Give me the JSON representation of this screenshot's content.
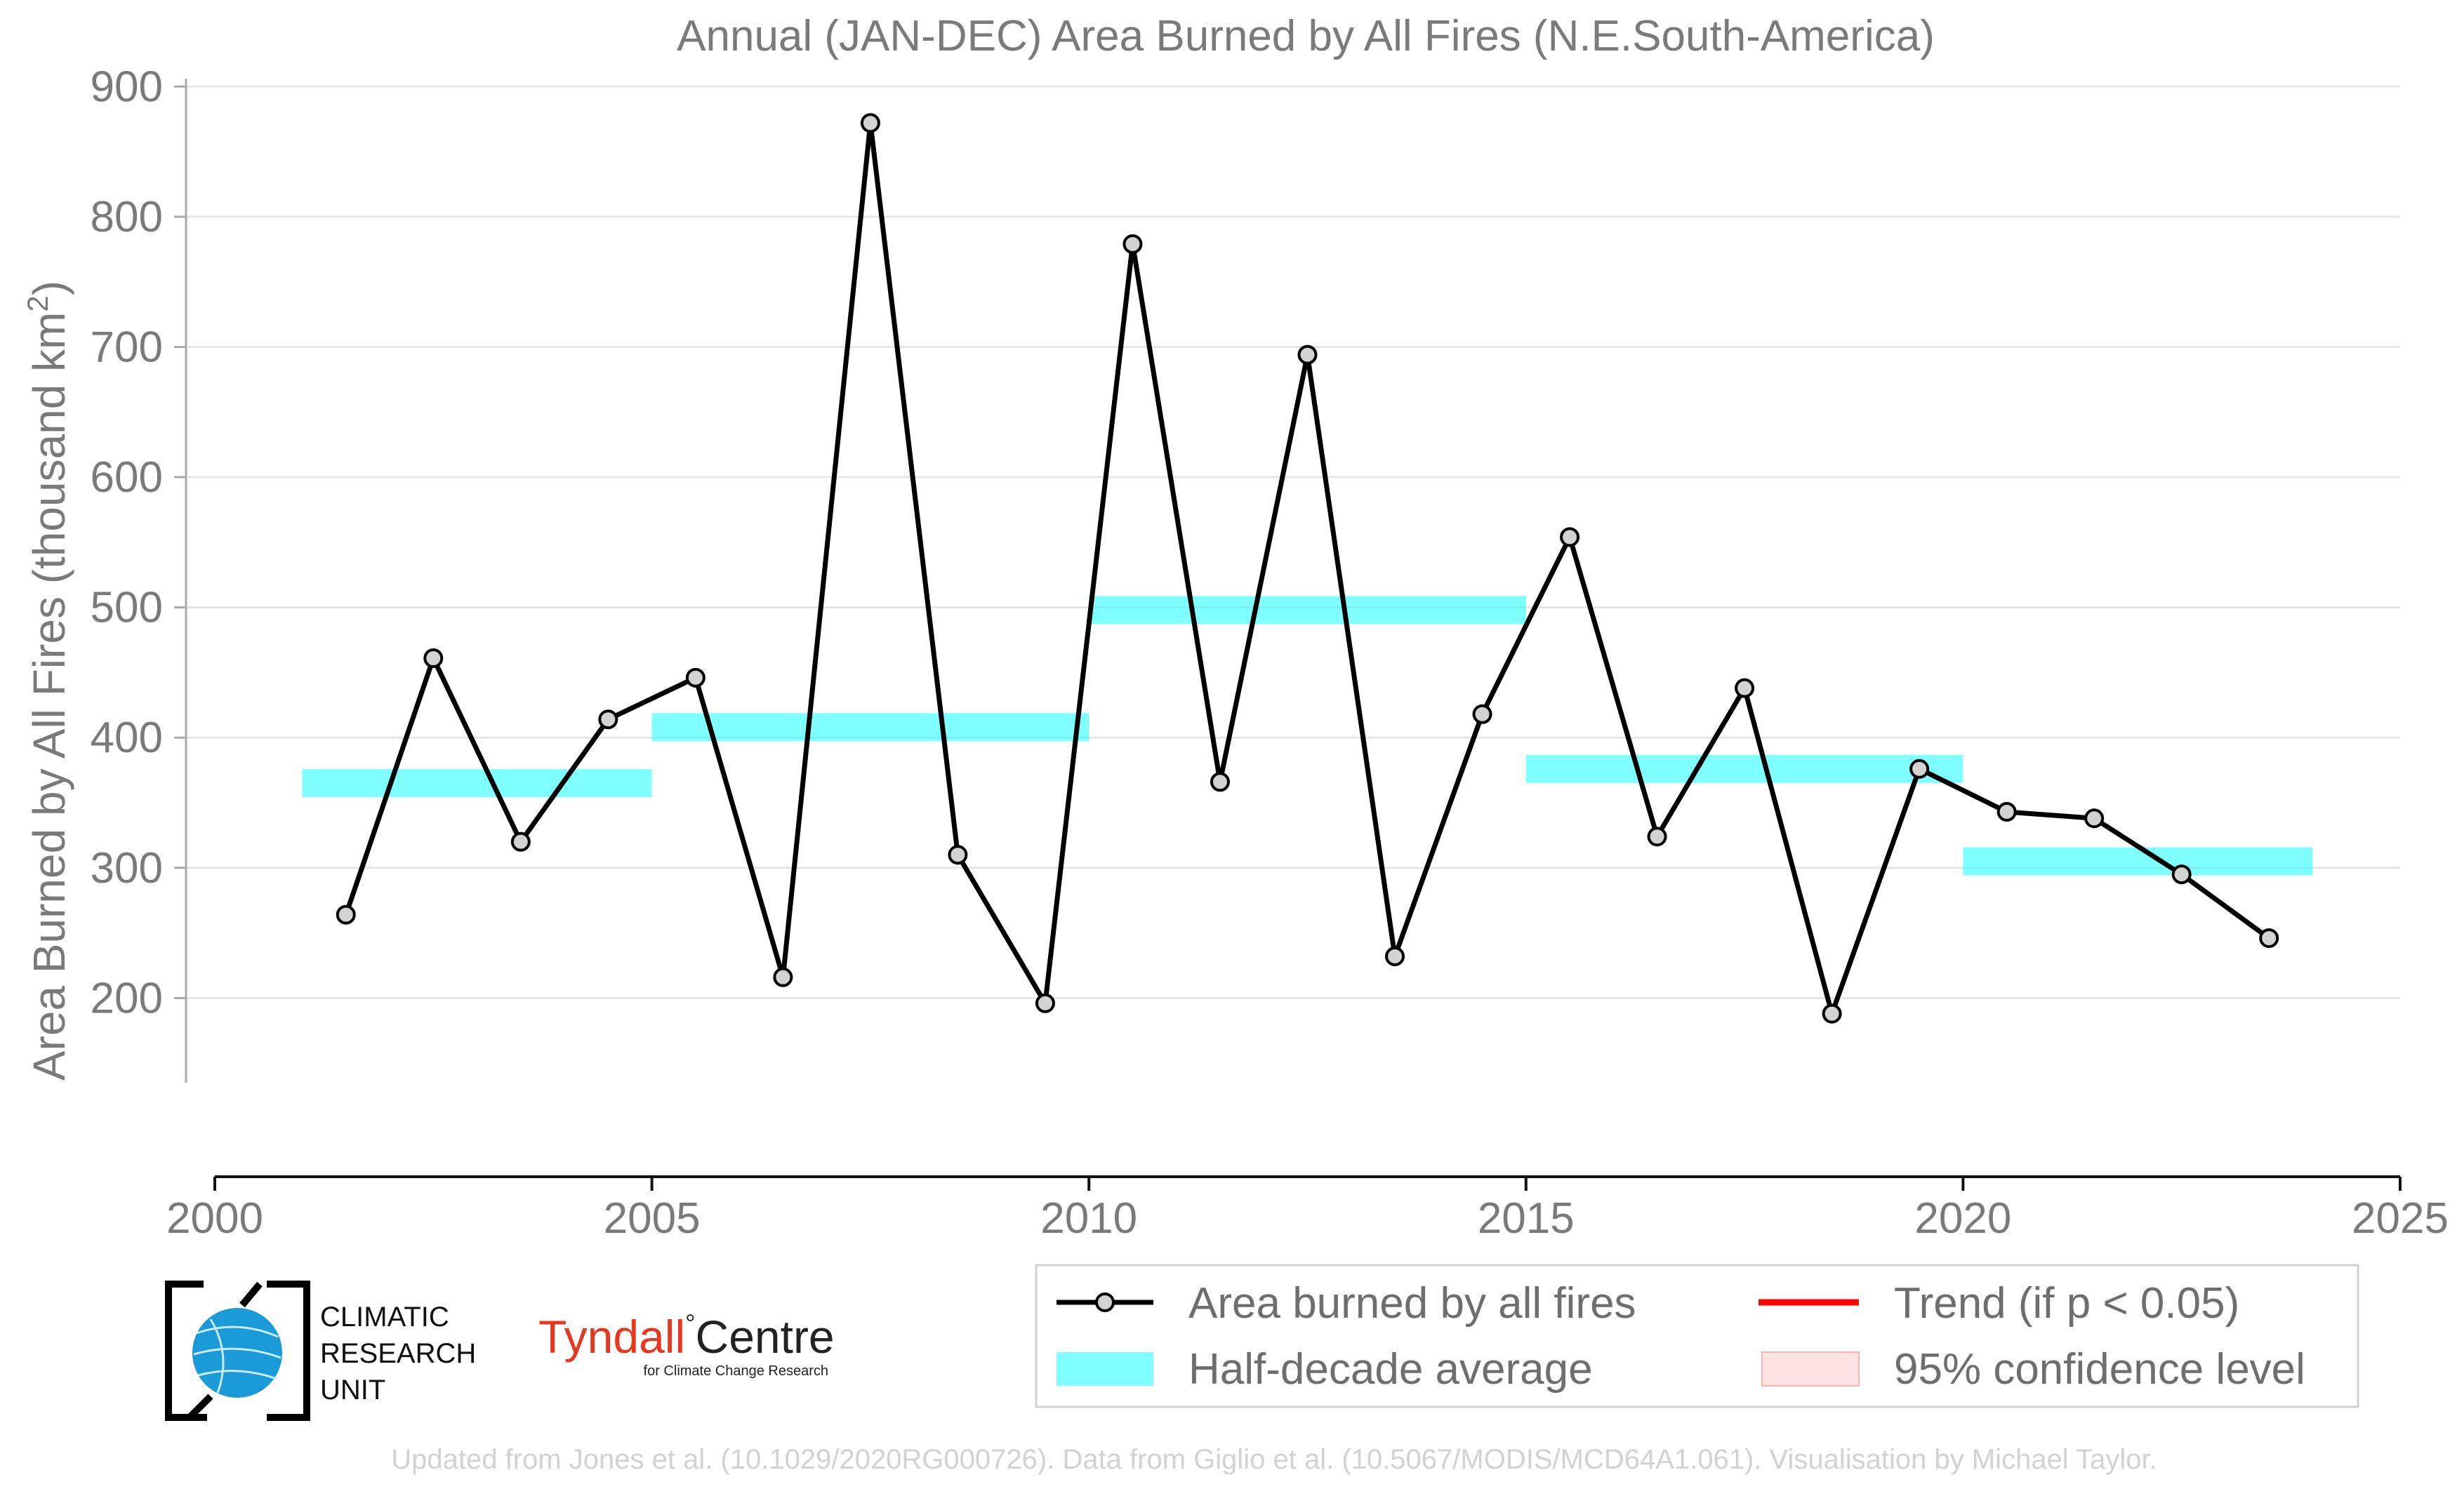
{
  "chart_data": {
    "type": "line",
    "title": "Annual (JAN-DEC) Area Burned by All Fires (N.E.South-America)",
    "ylabel_main": "Area Burned by All Fires (thousand km",
    "ylabel_sup": "2",
    "ylabel_tail": ")",
    "xlim": [
      2000,
      2025
    ],
    "ylim": [
      135,
      905
    ],
    "x_ticks": [
      2000,
      2005,
      2010,
      2015,
      2020,
      2025
    ],
    "y_ticks": [
      200,
      300,
      400,
      500,
      600,
      700,
      800,
      900
    ],
    "grid": "horizontal",
    "series": [
      {
        "name": "Area burned by all fires",
        "color": "#000000",
        "marker_fill": "#d3d3d3",
        "x": [
          2001.5,
          2002.5,
          2003.5,
          2004.5,
          2005.5,
          2006.5,
          2007.5,
          2008.5,
          2009.5,
          2010.5,
          2011.5,
          2012.5,
          2013.5,
          2014.5,
          2015.5,
          2016.5,
          2017.5,
          2018.5,
          2019.5,
          2020.5,
          2021.5,
          2022.5,
          2023.5
        ],
        "y": [
          264,
          461,
          320,
          414,
          446,
          216,
          872,
          310,
          196,
          779,
          366,
          694,
          232,
          418,
          554,
          324,
          438,
          188,
          376,
          343,
          338,
          295,
          246
        ]
      }
    ],
    "half_decade_averages": {
      "name": "Half-decade average",
      "color": "#00ffff",
      "segments": [
        {
          "x0": 2001,
          "x1": 2005,
          "y": 365
        },
        {
          "x0": 2005,
          "x1": 2010,
          "y": 408
        },
        {
          "x0": 2010,
          "x1": 2015,
          "y": 498
        },
        {
          "x0": 2015,
          "x1": 2020,
          "y": 376
        },
        {
          "x0": 2020,
          "x1": 2024,
          "y": 305
        }
      ]
    },
    "legend": {
      "placement": "bottom-right",
      "items": [
        {
          "label": "Area burned by all fires",
          "style": "line-marker",
          "color": "#000000"
        },
        {
          "label": "Trend (if p < 0.05)",
          "style": "line",
          "color": "#ff0000"
        },
        {
          "label": "Half-decade average",
          "style": "band",
          "color": "#00ffff"
        },
        {
          "label": "95% confidence level",
          "style": "patch",
          "color": "#ffcccc"
        }
      ]
    }
  },
  "logos": {
    "cru_lines": [
      "CLIMATIC",
      "RESEARCH",
      "UNIT"
    ],
    "tyndall_name": "Tyndall",
    "tyndall_centre": "Centre",
    "tyndall_sub": "for Climate Change Research",
    "tyndall_color": "#e8371f"
  },
  "footer": "Updated from Jones et al. (10.1029/2020RG000726). Data from Giglio et al. (10.5067/MODIS/MCD64A1.061). Visualisation by Michael Taylor."
}
